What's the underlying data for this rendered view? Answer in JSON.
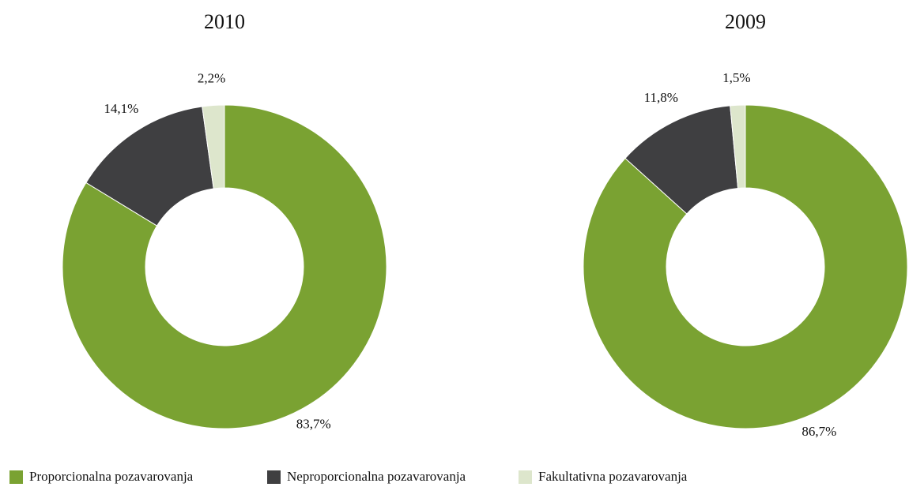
{
  "chart_data": [
    {
      "type": "donut",
      "title": "2010",
      "categories": [
        "Proporcionalna pozavarovanja",
        "Neproporcionalna pozavarovanja",
        "Fakultativna pozavarovanja"
      ],
      "values": [
        83.7,
        14.1,
        2.2
      ],
      "value_labels": [
        "83,7%",
        "14,1%",
        "2,2%"
      ],
      "colors": [
        "#7aa232",
        "#3f3f41",
        "#dde6cc"
      ]
    },
    {
      "type": "donut",
      "title": "2009",
      "categories": [
        "Proporcionalna pozavarovanja",
        "Neproporcionalna pozavarovanja",
        "Fakultativna pozavarovanja"
      ],
      "values": [
        86.7,
        11.8,
        1.5
      ],
      "value_labels": [
        "86,7%",
        "11,8%",
        "1,5%"
      ],
      "colors": [
        "#7aa232",
        "#3f3f41",
        "#dde6cc"
      ]
    }
  ]
}
